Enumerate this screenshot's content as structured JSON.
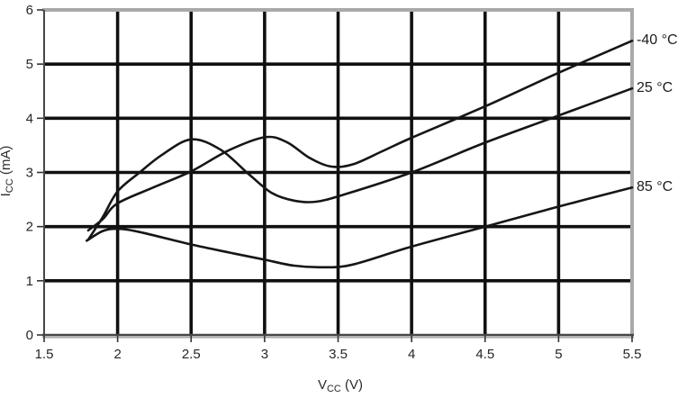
{
  "chart_data": {
    "type": "line",
    "title": "",
    "xlabel": "VCC (V)",
    "ylabel": "ICC (mA)",
    "xlabel_parts": {
      "pre": "V",
      "sub": "CC",
      "post": " (V)"
    },
    "ylabel_parts": {
      "pre": "I",
      "sub": "CC",
      "post": " (mA)"
    },
    "xlim": [
      1.5,
      5.5
    ],
    "ylim": [
      0,
      6
    ],
    "x_tick_values": [
      1.5,
      2,
      2.5,
      3,
      3.5,
      4,
      4.5,
      5,
      5.5
    ],
    "x_tick_labels": [
      "1.5",
      "2",
      "2.5",
      "3",
      "3.5",
      "4",
      "4.5",
      "5",
      "5.5"
    ],
    "y_tick_values": [
      0,
      1,
      2,
      3,
      4,
      5,
      6
    ],
    "y_tick_labels": [
      "0",
      "1",
      "2",
      "3",
      "4",
      "5",
      "6"
    ],
    "grid": true,
    "legend_position": "right-outside",
    "series": [
      {
        "name": "-40 °C",
        "points": [
          [
            1.8,
            1.93
          ],
          [
            1.9,
            2.14
          ],
          [
            2.0,
            2.43
          ],
          [
            2.25,
            2.73
          ],
          [
            2.5,
            3.02
          ],
          [
            2.75,
            3.4
          ],
          [
            3.0,
            3.65
          ],
          [
            3.15,
            3.56
          ],
          [
            3.3,
            3.28
          ],
          [
            3.45,
            3.11
          ],
          [
            3.6,
            3.15
          ],
          [
            3.8,
            3.39
          ],
          [
            4.0,
            3.64
          ],
          [
            4.5,
            4.22
          ],
          [
            5.0,
            4.84
          ],
          [
            5.5,
            5.43
          ]
        ]
      },
      {
        "name": "25 °C",
        "points": [
          [
            1.8,
            1.76
          ],
          [
            1.9,
            2.18
          ],
          [
            2.0,
            2.65
          ],
          [
            2.15,
            3.0
          ],
          [
            2.3,
            3.32
          ],
          [
            2.5,
            3.61
          ],
          [
            2.7,
            3.42
          ],
          [
            2.9,
            2.95
          ],
          [
            3.05,
            2.62
          ],
          [
            3.2,
            2.48
          ],
          [
            3.35,
            2.46
          ],
          [
            3.55,
            2.6
          ],
          [
            4.0,
            3.0
          ],
          [
            4.5,
            3.55
          ],
          [
            5.0,
            4.05
          ],
          [
            5.5,
            4.55
          ]
        ]
      },
      {
        "name": "85 °C",
        "points": [
          [
            1.79,
            1.74
          ],
          [
            1.9,
            1.92
          ],
          [
            2.0,
            1.96
          ],
          [
            2.15,
            1.9
          ],
          [
            2.5,
            1.67
          ],
          [
            2.8,
            1.5
          ],
          [
            3.0,
            1.39
          ],
          [
            3.2,
            1.28
          ],
          [
            3.4,
            1.25
          ],
          [
            3.6,
            1.3
          ],
          [
            4.0,
            1.63
          ],
          [
            4.5,
            2.0
          ],
          [
            5.0,
            2.37
          ],
          [
            5.5,
            2.72
          ]
        ]
      }
    ],
    "colors": {
      "curve": "#161616",
      "grid": "#101010",
      "frame": "#a9a9a9",
      "axis": "#474747",
      "axis_echo": "#b0b0b0",
      "tick": "#333333",
      "text": "#262626"
    }
  }
}
